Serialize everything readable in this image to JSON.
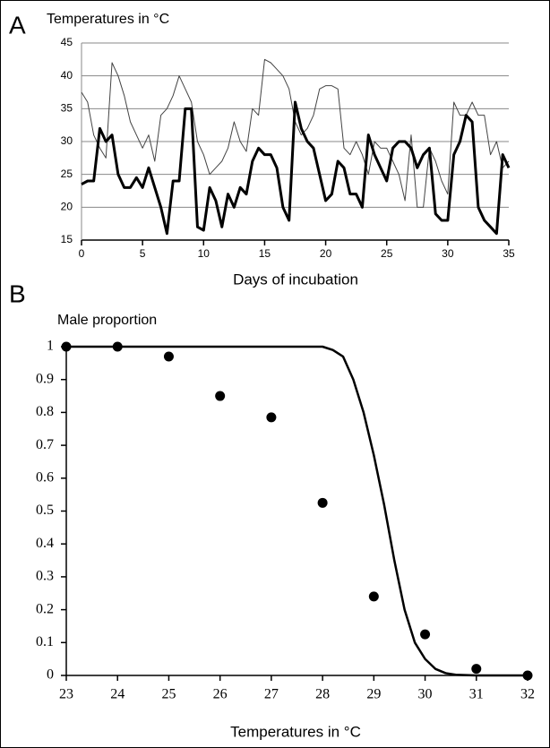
{
  "chart_data": [
    {
      "type": "line",
      "panel_label": "A",
      "title": "Temperatures in °C",
      "x_label": "Days of incubation",
      "x": [
        0,
        0.5,
        1,
        1.5,
        2,
        2.5,
        3,
        3.5,
        4,
        4.5,
        5,
        5.5,
        6,
        6.5,
        7,
        7.5,
        8,
        8.5,
        9,
        9.5,
        10,
        10.5,
        11,
        11.5,
        12,
        12.5,
        13,
        13.5,
        14,
        14.5,
        15,
        15.5,
        16,
        16.5,
        17,
        17.5,
        18,
        18.5,
        19,
        19.5,
        20,
        20.5,
        21,
        21.5,
        22,
        22.5,
        23,
        23.5,
        24,
        24.5,
        25,
        25.5,
        26,
        26.5,
        27,
        27.5,
        28,
        28.5,
        29,
        29.5,
        30,
        30.5,
        31,
        31.5,
        32,
        32.5,
        33,
        33.5,
        34,
        34.5,
        35
      ],
      "series": [
        {
          "color": "#444444",
          "line_width": 1,
          "values": [
            37.5,
            36,
            31,
            29,
            27.5,
            42,
            40,
            37,
            33,
            31,
            29,
            31,
            27,
            34,
            35,
            37,
            40,
            38,
            36,
            30,
            28,
            25,
            26,
            27,
            29,
            33,
            30,
            28.5,
            35,
            34,
            42.5,
            42,
            41,
            40,
            38,
            33,
            31,
            32,
            34,
            38,
            38.5,
            38.5,
            38,
            29,
            28,
            30,
            28,
            25,
            30,
            29,
            29,
            27,
            25,
            21,
            31,
            20,
            20,
            29,
            27,
            24,
            22,
            36,
            34,
            34,
            36,
            34,
            34,
            28,
            30,
            26,
            27
          ]
        },
        {
          "color": "#000000",
          "line_width": 3,
          "values": [
            23.5,
            24,
            24,
            32,
            30,
            31,
            25,
            23,
            23,
            24.5,
            23,
            26,
            23,
            20,
            16,
            24,
            24,
            35,
            35,
            17,
            16.5,
            23,
            21,
            17,
            22,
            20,
            23,
            22,
            27,
            29,
            28,
            28,
            26,
            20,
            18,
            36,
            32,
            30,
            29,
            25,
            21,
            22,
            27,
            26,
            22,
            22,
            20,
            31,
            28,
            26,
            24,
            29,
            30,
            30,
            29,
            26,
            28,
            29,
            19,
            18,
            18,
            28,
            30,
            34,
            33,
            20,
            18,
            17,
            16,
            28,
            26
          ]
        }
      ],
      "xlim": [
        0,
        35
      ],
      "xticks": [
        0,
        5,
        10,
        15,
        20,
        25,
        30,
        35
      ],
      "ylim": [
        15,
        45
      ],
      "yticks": [
        15,
        20,
        25,
        30,
        35,
        40,
        45
      ],
      "grid": true
    },
    {
      "type": "scatter",
      "panel_label": "B",
      "y_label": "Male proportion",
      "x_label": "Temperatures in °C",
      "series": [
        {
          "mode": "markers",
          "color": "#000000",
          "x": [
            23,
            24,
            25,
            26,
            27,
            28,
            29,
            30,
            31,
            32
          ],
          "values": [
            1,
            1,
            0.97,
            0.85,
            0.785,
            0.525,
            0.24,
            0.125,
            0.02,
            0
          ]
        },
        {
          "mode": "line",
          "color": "#000000",
          "x": [
            23,
            28,
            28.2,
            28.4,
            28.6,
            28.8,
            29,
            29.2,
            29.4,
            29.6,
            29.8,
            30,
            30.2,
            30.4,
            30.6,
            31,
            32
          ],
          "values": [
            1,
            1,
            0.99,
            0.97,
            0.9,
            0.8,
            0.67,
            0.52,
            0.35,
            0.2,
            0.1,
            0.05,
            0.02,
            0.007,
            0.002,
            0,
            0
          ]
        }
      ],
      "xlim": [
        23,
        32
      ],
      "xticks": [
        23,
        24,
        25,
        26,
        27,
        28,
        29,
        30,
        31,
        32
      ],
      "ylim": [
        0,
        1
      ],
      "yticks": [
        0,
        0.1,
        0.2,
        0.3,
        0.4,
        0.5,
        0.6,
        0.7,
        0.8,
        0.9,
        1
      ],
      "grid": false
    }
  ]
}
